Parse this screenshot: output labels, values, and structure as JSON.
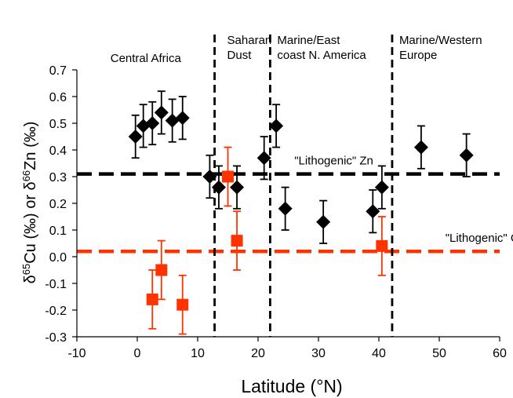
{
  "chart_data": {
    "type": "scatter",
    "xlabel": "Latitude (°N)",
    "ylabel": "δ65Cu (‰) or δ66Zn (‰)",
    "xlim": [
      -10,
      60
    ],
    "ylim": [
      -0.3,
      0.7
    ],
    "xticks": [
      "-10",
      "0",
      "10",
      "20",
      "30",
      "40",
      "50",
      "60"
    ],
    "yticks": [
      "-0.3",
      "-0.2",
      "-0.1",
      "0.0",
      "0.1",
      "0.2",
      "0.3",
      "0.4",
      "0.5",
      "0.6",
      "0.7"
    ],
    "colors": {
      "zn": "#000000",
      "cu": "#ff3300"
    },
    "series": [
      {
        "key": "zn",
        "marker": "diamond",
        "points": [
          {
            "x": -0.3,
            "y": 0.45,
            "err": 0.08
          },
          {
            "x": 1.0,
            "y": 0.49,
            "err": 0.08
          },
          {
            "x": 2.5,
            "y": 0.5,
            "err": 0.08
          },
          {
            "x": 4.0,
            "y": 0.54,
            "err": 0.08
          },
          {
            "x": 5.8,
            "y": 0.51,
            "err": 0.08
          },
          {
            "x": 7.5,
            "y": 0.52,
            "err": 0.08
          },
          {
            "x": 12.0,
            "y": 0.3,
            "err": 0.08
          },
          {
            "x": 13.5,
            "y": 0.26,
            "err": 0.08
          },
          {
            "x": 16.5,
            "y": 0.26,
            "err": 0.08
          },
          {
            "x": 21.0,
            "y": 0.37,
            "err": 0.08
          },
          {
            "x": 23.0,
            "y": 0.49,
            "err": 0.08
          },
          {
            "x": 24.5,
            "y": 0.18,
            "err": 0.08
          },
          {
            "x": 30.8,
            "y": 0.13,
            "err": 0.08
          },
          {
            "x": 39.0,
            "y": 0.17,
            "err": 0.08
          },
          {
            "x": 40.5,
            "y": 0.26,
            "err": 0.08
          },
          {
            "x": 47.0,
            "y": 0.41,
            "err": 0.08
          },
          {
            "x": 54.5,
            "y": 0.38,
            "err": 0.08
          }
        ]
      },
      {
        "key": "cu",
        "marker": "square",
        "points": [
          {
            "x": 2.5,
            "y": -0.16,
            "err": 0.11
          },
          {
            "x": 4.0,
            "y": -0.05,
            "err": 0.11
          },
          {
            "x": 7.5,
            "y": -0.18,
            "err": 0.11
          },
          {
            "x": 15.0,
            "y": 0.3,
            "err": 0.11
          },
          {
            "x": 16.5,
            "y": 0.06,
            "err": 0.11
          },
          {
            "x": 40.5,
            "y": 0.04,
            "err": 0.11
          }
        ]
      }
    ],
    "reference_lines": [
      {
        "label": "\"Lithogenic\" Zn",
        "y": 0.31,
        "color": "#000000",
        "label_x": 26
      },
      {
        "label": "\"Lithogenic\" Cu",
        "y": 0.02,
        "color": "#ff3300",
        "label_x": 51
      }
    ],
    "regions": [
      {
        "label_lines": [
          "Central Africa"
        ]
      },
      {
        "label_lines": [
          "Saharan",
          "Dust"
        ]
      },
      {
        "label_lines": [
          "Marine/East",
          "coast N. America"
        ]
      },
      {
        "label_lines": [
          "Marine/Western",
          "Europe"
        ]
      }
    ],
    "boundaries": [
      12.8,
      22.0,
      42.2
    ]
  }
}
